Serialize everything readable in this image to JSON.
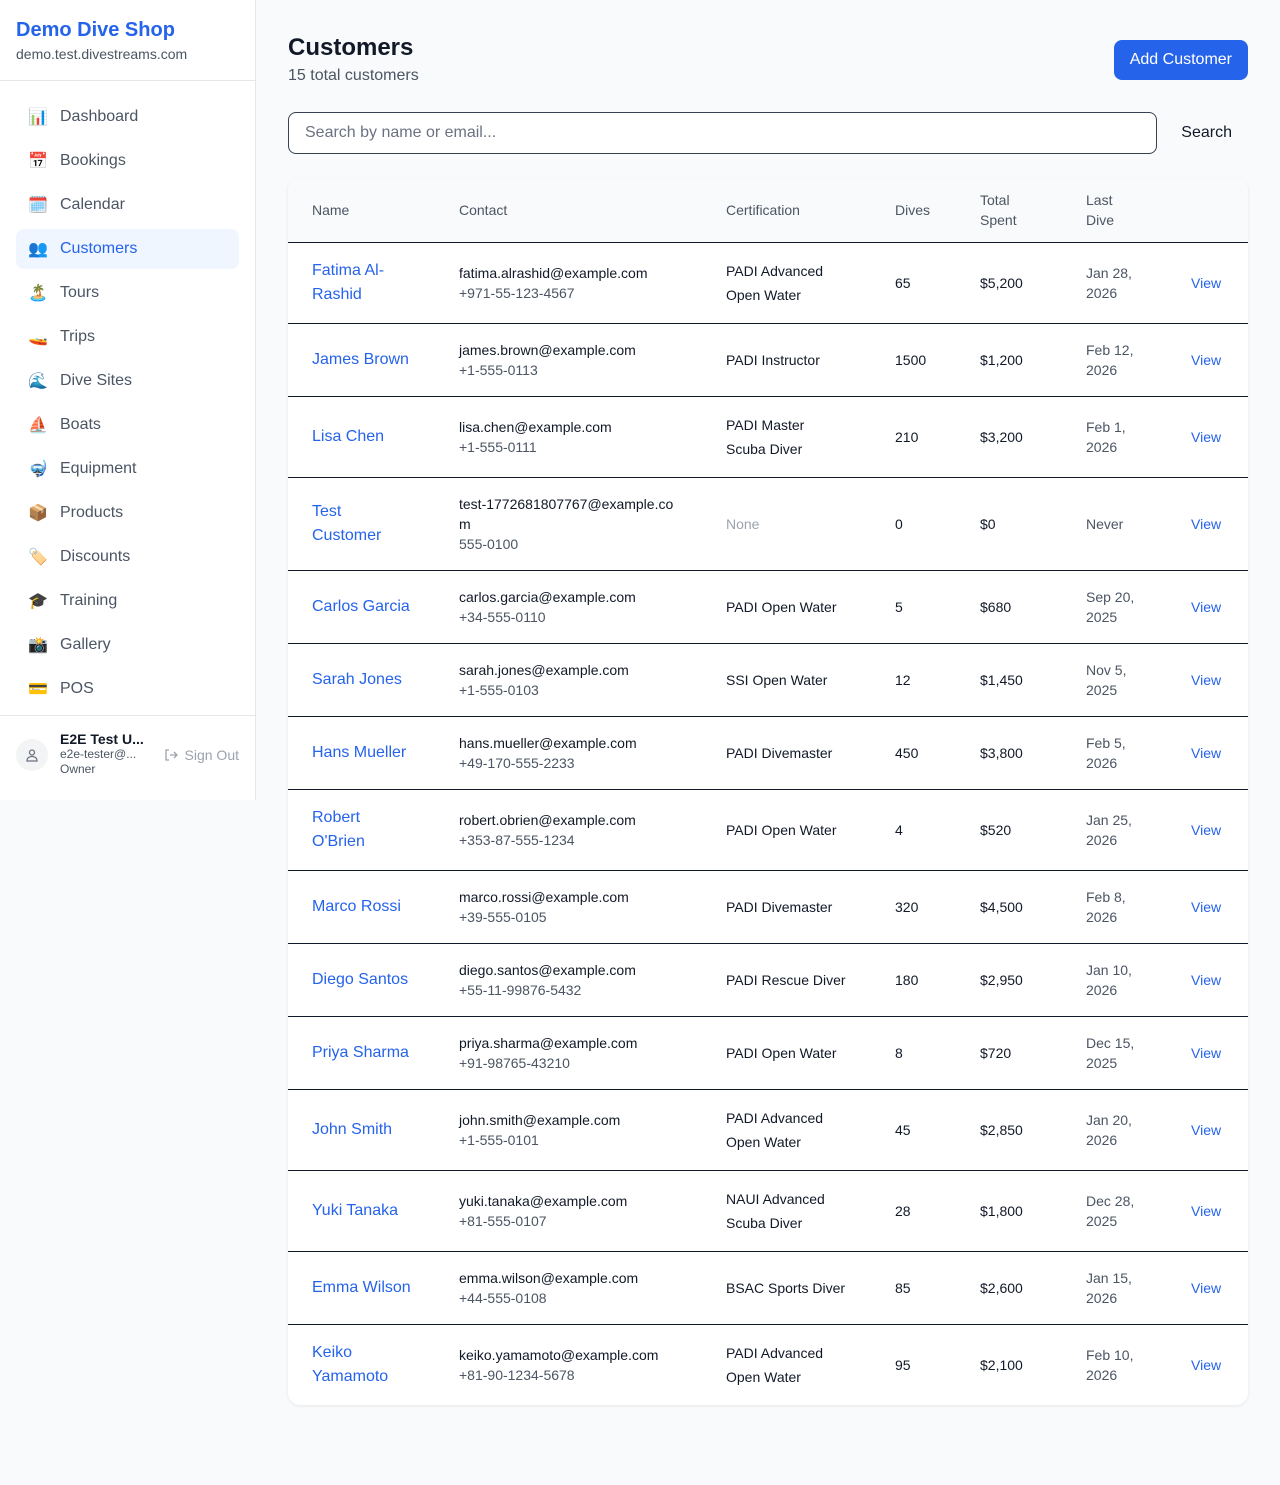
{
  "sidebar": {
    "title": "Demo Dive Shop",
    "domain": "demo.test.divestreams.com",
    "items": [
      {
        "label": "Dashboard",
        "icon": "📊",
        "name": "dashboard"
      },
      {
        "label": "Bookings",
        "icon": "📅",
        "name": "bookings"
      },
      {
        "label": "Calendar",
        "icon": "🗓️",
        "name": "calendar"
      },
      {
        "label": "Customers",
        "icon": "👥",
        "name": "customers",
        "active": true
      },
      {
        "label": "Tours",
        "icon": "🏝️",
        "name": "tours"
      },
      {
        "label": "Trips",
        "icon": "🚤",
        "name": "trips"
      },
      {
        "label": "Dive Sites",
        "icon": "🌊",
        "name": "dive-sites"
      },
      {
        "label": "Boats",
        "icon": "⛵",
        "name": "boats"
      },
      {
        "label": "Equipment",
        "icon": "🤿",
        "name": "equipment"
      },
      {
        "label": "Products",
        "icon": "📦",
        "name": "products"
      },
      {
        "label": "Discounts",
        "icon": "🏷️",
        "name": "discounts"
      },
      {
        "label": "Training",
        "icon": "🎓",
        "name": "training"
      },
      {
        "label": "Gallery",
        "icon": "📸",
        "name": "gallery"
      },
      {
        "label": "POS",
        "icon": "💳",
        "name": "pos"
      }
    ],
    "user": {
      "name": "E2E Test U...",
      "email": "e2e-tester@...",
      "role": "Owner",
      "sign_out": "Sign Out"
    }
  },
  "header": {
    "title": "Customers",
    "subtitle": "15 total customers",
    "add_label": "Add Customer"
  },
  "search": {
    "placeholder": "Search by name or email...",
    "button": "Search"
  },
  "table": {
    "columns": [
      "Name",
      "Contact",
      "Certification",
      "Dives",
      "Total Spent",
      "Last Dive",
      ""
    ],
    "rows": [
      {
        "name": "Fatima Al-Rashid",
        "email": "fatima.alrashid@example.com",
        "phone": "+971-55-123-4567",
        "cert": "PADI Advanced Open Water",
        "dives": "65",
        "spent": "$5,200",
        "last": "Jan 28, 2026"
      },
      {
        "name": "James Brown",
        "email": "james.brown@example.com",
        "phone": "+1-555-0113",
        "cert": "PADI Instructor",
        "dives": "1500",
        "spent": "$1,200",
        "last": "Feb 12, 2026"
      },
      {
        "name": "Lisa Chen",
        "email": "lisa.chen@example.com",
        "phone": "+1-555-0111",
        "cert": "PADI Master Scuba Diver",
        "dives": "210",
        "spent": "$3,200",
        "last": "Feb 1, 2026"
      },
      {
        "name": "Test Customer",
        "email": "test-1772681807767@example.com",
        "phone": "555-0100",
        "cert": "None",
        "dives": "0",
        "spent": "$0",
        "last": "Never"
      },
      {
        "name": "Carlos Garcia",
        "email": "carlos.garcia@example.com",
        "phone": "+34-555-0110",
        "cert": "PADI Open Water",
        "dives": "5",
        "spent": "$680",
        "last": "Sep 20, 2025"
      },
      {
        "name": "Sarah Jones",
        "email": "sarah.jones@example.com",
        "phone": "+1-555-0103",
        "cert": "SSI Open Water",
        "dives": "12",
        "spent": "$1,450",
        "last": "Nov 5, 2025"
      },
      {
        "name": "Hans Mueller",
        "email": "hans.mueller@example.com",
        "phone": "+49-170-555-2233",
        "cert": "PADI Divemaster",
        "dives": "450",
        "spent": "$3,800",
        "last": "Feb 5, 2026"
      },
      {
        "name": "Robert O'Brien",
        "email": "robert.obrien@example.com",
        "phone": "+353-87-555-1234",
        "cert": "PADI Open Water",
        "dives": "4",
        "spent": "$520",
        "last": "Jan 25, 2026"
      },
      {
        "name": "Marco Rossi",
        "email": "marco.rossi@example.com",
        "phone": "+39-555-0105",
        "cert": "PADI Divemaster",
        "dives": "320",
        "spent": "$4,500",
        "last": "Feb 8, 2026"
      },
      {
        "name": "Diego Santos",
        "email": "diego.santos@example.com",
        "phone": "+55-11-99876-5432",
        "cert": "PADI Rescue Diver",
        "dives": "180",
        "spent": "$2,950",
        "last": "Jan 10, 2026"
      },
      {
        "name": "Priya Sharma",
        "email": "priya.sharma@example.com",
        "phone": "+91-98765-43210",
        "cert": "PADI Open Water",
        "dives": "8",
        "spent": "$720",
        "last": "Dec 15, 2025"
      },
      {
        "name": "John Smith",
        "email": "john.smith@example.com",
        "phone": "+1-555-0101",
        "cert": "PADI Advanced Open Water",
        "dives": "45",
        "spent": "$2,850",
        "last": "Jan 20, 2026"
      },
      {
        "name": "Yuki Tanaka",
        "email": "yuki.tanaka@example.com",
        "phone": "+81-555-0107",
        "cert": "NAUI Advanced Scuba Diver",
        "dives": "28",
        "spent": "$1,800",
        "last": "Dec 28, 2025"
      },
      {
        "name": "Emma Wilson",
        "email": "emma.wilson@example.com",
        "phone": "+44-555-0108",
        "cert": "BSAC Sports Diver",
        "dives": "85",
        "spent": "$2,600",
        "last": "Jan 15, 2026"
      },
      {
        "name": "Keiko Yamamoto",
        "email": "keiko.yamamoto@example.com",
        "phone": "+81-90-1234-5678",
        "cert": "PADI Advanced Open Water",
        "dives": "95",
        "spent": "$2,100",
        "last": "Feb 10, 2026"
      }
    ],
    "view_label": "View"
  }
}
